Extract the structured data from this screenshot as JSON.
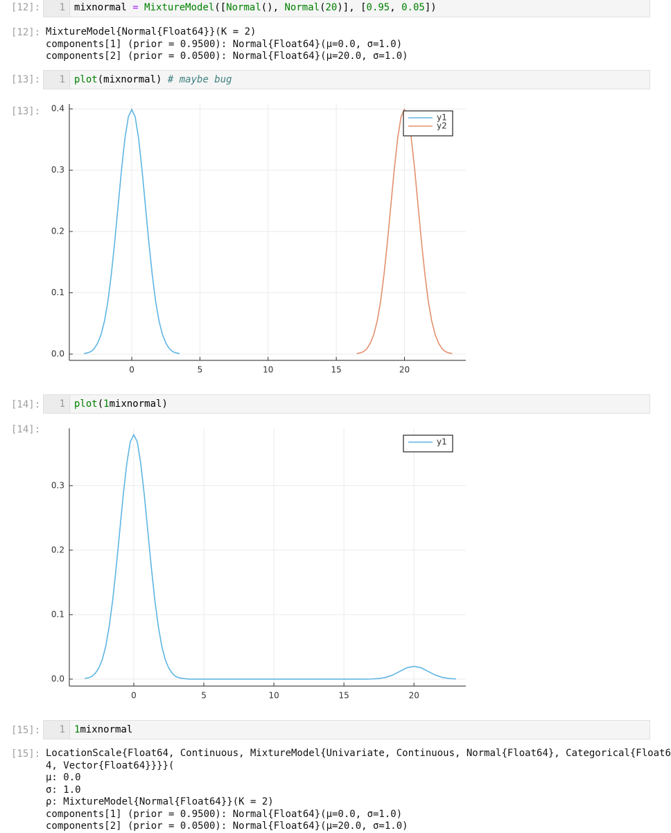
{
  "cells": [
    {
      "prompt_in": "[12]:",
      "line_number": "1",
      "code": [
        "mixnormal ",
        "=",
        " ",
        "MixtureModel",
        "([",
        "Normal",
        "(), ",
        "Normal",
        "(",
        "20",
        ")], [",
        "0.95",
        ", ",
        "0.05",
        "])"
      ],
      "prompt_out": "[12]:",
      "output": [
        "MixtureModel{Normal{Float64}}(K = 2)",
        "components[1] (prior = 0.9500): Normal{Float64}(μ=0.0, σ=1.0)",
        "components[2] (prior = 0.0500): Normal{Float64}(μ=20.0, σ=1.0)"
      ]
    },
    {
      "prompt_in": "[13]:",
      "line_number": "1",
      "code": [
        "plot",
        "(mixnormal) ",
        "# maybe bug"
      ],
      "prompt_out": "[13]:",
      "output": []
    },
    {
      "prompt_in": "[14]:",
      "line_number": "1",
      "code": [
        "plot",
        "(",
        "1",
        "mixnormal)"
      ],
      "prompt_out": "[14]:",
      "output": []
    },
    {
      "prompt_in": "[15]:",
      "line_number": "1",
      "code": [
        "1",
        "mixnormal"
      ],
      "prompt_out": "[15]:",
      "output": [
        "LocationScale{Float64, Continuous, MixtureModel{Univariate, Continuous, Normal{Float64}, Categorical{Float6",
        "4, Vector{Float64}}}}(",
        "μ: 0.0",
        "σ: 1.0",
        "ρ: MixtureModel{Normal{Float64}}(K = 2)",
        "components[1] (prior = 0.9500): Normal{Float64}(μ=0.0, σ=1.0)",
        "components[2] (prior = 0.0500): Normal{Float64}(μ=20.0, σ=1.0)"
      ]
    }
  ],
  "chart_data": [
    {
      "type": "line",
      "xlim": [
        -4.58,
        24.5
      ],
      "ylim": [
        -0.0102,
        0.408
      ],
      "xticks": [
        0,
        5,
        10,
        15,
        20
      ],
      "yticks": [
        {
          "value": 0,
          "label": "0.0"
        },
        0.1,
        0.2,
        0.3,
        0.4
      ],
      "grid": true,
      "legend": "top-right",
      "series": [
        {
          "name": "y1",
          "color": "#5db5e3",
          "x": [
            -3.5,
            -3.25,
            -3,
            -2.75,
            -2.5,
            -2.25,
            -2,
            -1.75,
            -1.5,
            -1.25,
            -1,
            -0.75,
            -0.5,
            -0.25,
            0,
            0.25,
            0.5,
            0.75,
            1,
            1.25,
            1.5,
            1.75,
            2,
            2.25,
            2.5,
            2.75,
            3,
            3.25,
            3.5
          ],
          "values": [
            0.001,
            0.002,
            0.004,
            0.009,
            0.018,
            0.032,
            0.054,
            0.086,
            0.13,
            0.183,
            0.242,
            0.301,
            0.352,
            0.387,
            0.399,
            0.387,
            0.352,
            0.301,
            0.242,
            0.183,
            0.13,
            0.086,
            0.054,
            0.032,
            0.018,
            0.009,
            0.004,
            0.002,
            0.001
          ]
        },
        {
          "name": "y2",
          "color": "#e2906c",
          "x": [
            16.5,
            16.75,
            17,
            17.25,
            17.5,
            17.75,
            18,
            18.25,
            18.5,
            18.75,
            19,
            19.25,
            19.5,
            19.75,
            20,
            20.25,
            20.5,
            20.75,
            21,
            21.25,
            21.5,
            21.75,
            22,
            22.25,
            22.5,
            22.75,
            23,
            23.25,
            23.5
          ],
          "values": [
            0.001,
            0.002,
            0.004,
            0.009,
            0.018,
            0.032,
            0.054,
            0.086,
            0.13,
            0.183,
            0.242,
            0.301,
            0.352,
            0.387,
            0.399,
            0.387,
            0.352,
            0.301,
            0.242,
            0.183,
            0.13,
            0.086,
            0.054,
            0.032,
            0.018,
            0.009,
            0.004,
            0.002,
            0.001
          ]
        }
      ]
    },
    {
      "type": "line",
      "xlim": [
        -4.6,
        23.7
      ],
      "ylim": [
        -0.0108,
        0.389
      ],
      "xticks": [
        0,
        5,
        10,
        15,
        20
      ],
      "yticks": [
        {
          "value": 0,
          "label": "0.0"
        },
        0.1,
        0.2,
        0.3
      ],
      "grid": true,
      "legend": "top-right",
      "series": [
        {
          "name": "y1",
          "color": "#5db5e3",
          "x": [
            -3.5,
            -3.25,
            -3,
            -2.75,
            -2.5,
            -2.25,
            -2,
            -1.75,
            -1.5,
            -1.25,
            -1,
            -0.75,
            -0.5,
            -0.25,
            0,
            0.25,
            0.5,
            0.75,
            1,
            1.25,
            1.5,
            1.75,
            2,
            2.25,
            2.5,
            2.75,
            3,
            3.25,
            3.5,
            4,
            5,
            6,
            7,
            8,
            9,
            10,
            11,
            12,
            13,
            14,
            15,
            16,
            16.5,
            17,
            17.5,
            18,
            18.5,
            19,
            19.5,
            20,
            20.5,
            21,
            21.5,
            22,
            22.5,
            23
          ],
          "values": [
            0.001,
            0.002,
            0.004,
            0.009,
            0.017,
            0.03,
            0.051,
            0.082,
            0.123,
            0.174,
            0.23,
            0.286,
            0.334,
            0.368,
            0.379,
            0.368,
            0.334,
            0.286,
            0.23,
            0.174,
            0.123,
            0.082,
            0.051,
            0.03,
            0.017,
            0.009,
            0.004,
            0.002,
            0.001,
            0,
            0,
            0,
            0,
            0,
            0,
            0,
            0,
            0,
            0,
            0,
            0,
            0,
            0,
            0.0002,
            0.0009,
            0.0027,
            0.0065,
            0.0121,
            0.0176,
            0.0199,
            0.0176,
            0.0121,
            0.0065,
            0.0027,
            0.0009,
            0.0002
          ]
        }
      ]
    }
  ]
}
